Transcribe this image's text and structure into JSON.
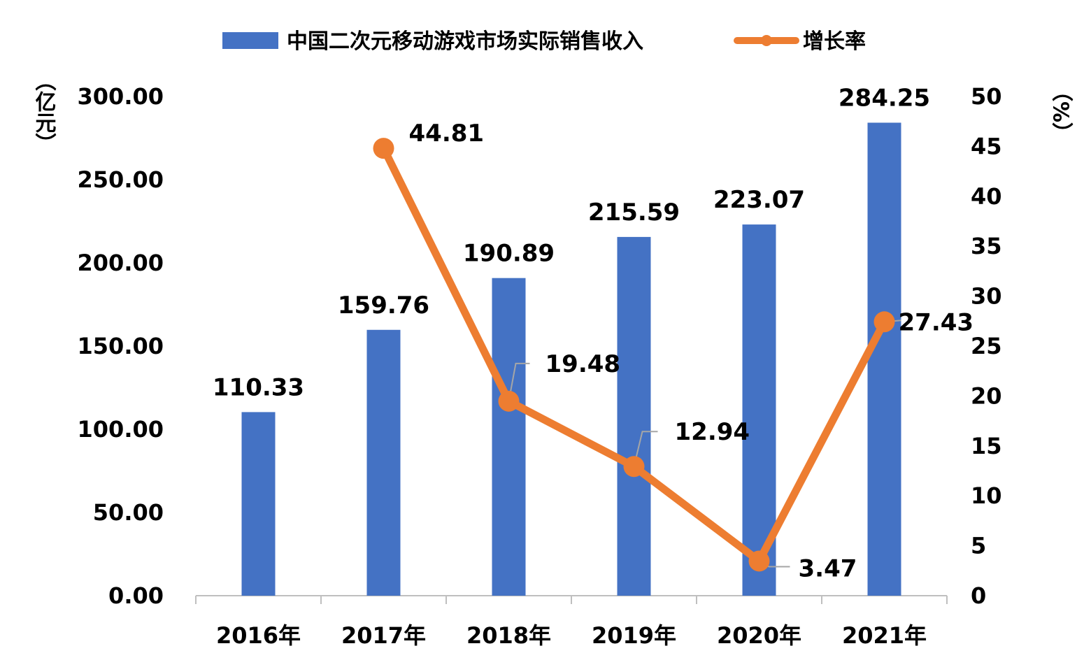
{
  "chart_data": {
    "type": "bar+line",
    "categories": [
      "2016年",
      "2017年",
      "2018年",
      "2019年",
      "2020年",
      "2021年"
    ],
    "series": [
      {
        "name": "中国二次元移动游戏市场实际销售收入",
        "type": "bar",
        "axis": "left",
        "values": [
          110.33,
          159.76,
          190.89,
          215.59,
          223.07,
          284.25
        ],
        "labels": [
          "110.33",
          "159.76",
          "190.89",
          "215.59",
          "223.07",
          "284.25"
        ],
        "color": "#4472C4"
      },
      {
        "name": "增长率",
        "type": "line",
        "axis": "right",
        "values": [
          null,
          44.81,
          19.48,
          12.94,
          3.47,
          27.43
        ],
        "labels": [
          "",
          "44.81",
          "19.48",
          "12.94",
          "3.47",
          "27.43"
        ],
        "color": "#ED7D31"
      }
    ],
    "y_left": {
      "unit_label": "（亿元）",
      "ylim": [
        0,
        300
      ],
      "ticks": [
        "0.00",
        "50.00",
        "100.00",
        "150.00",
        "200.00",
        "250.00",
        "300.00"
      ]
    },
    "y_right": {
      "unit_label": "（%）",
      "ylim": [
        0,
        50
      ],
      "ticks": [
        "0",
        "5",
        "10",
        "15",
        "20",
        "25",
        "30",
        "35",
        "40",
        "45",
        "50"
      ]
    },
    "legend_position": "top",
    "grid": false
  }
}
